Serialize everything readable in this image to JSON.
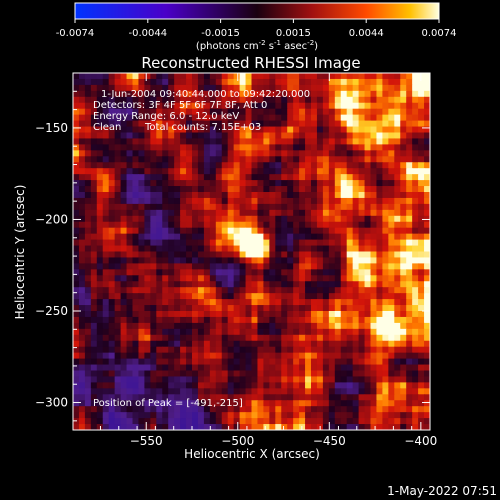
{
  "chart_data": {
    "type": "heatmap",
    "title": "Reconstructed RHESSI Image",
    "xlabel": "Heliocentric X (arcsec)",
    "ylabel": "Heliocentric Y (arcsec)",
    "xlim": [
      -590,
      -395
    ],
    "ylim": [
      -315,
      -120
    ],
    "x_ticks": [
      -550,
      -500,
      -450,
      -400
    ],
    "y_ticks": [
      -300,
      -250,
      -200,
      -150
    ],
    "colorbar": {
      "range": [
        -0.0074,
        0.0074
      ],
      "ticks": [
        "-0.0074",
        "-0.0044",
        "-0.0015",
        "0.0015",
        "0.0044",
        "0.0074"
      ],
      "units_text": "(photons cm",
      "units_sup1": "-2",
      "units_mid1": " s",
      "units_sup2": "-1",
      "units_mid2": " asec",
      "units_sup3": "-2",
      "units_end": ")"
    },
    "annotations": {
      "time_range": "1-Jun-2004 09:40:44.000 to 09:42:20.000",
      "detectors": "Detectors: 3F 4F 5F 6F 7F 8F, Att 0",
      "energy": "Energy Range: 6.0 - 12.0 keV",
      "clean_label": "Clean",
      "total_counts": "Total counts: 7.15E+03",
      "peak": "Position of Peak = [-491,-215]"
    },
    "peak": {
      "x": -491,
      "y": -215,
      "value": 0.0074
    },
    "timestamp": "1-May-2022 07:51"
  }
}
